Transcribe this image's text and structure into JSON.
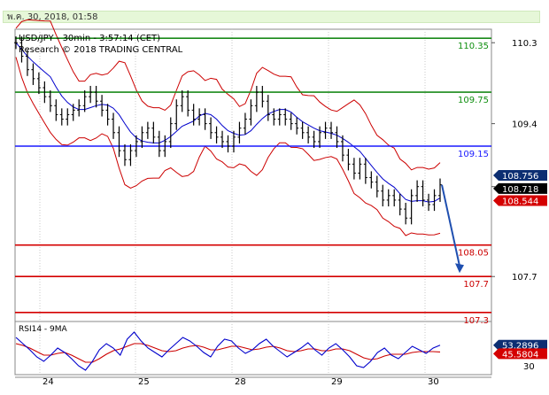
{
  "timestamp": "พ.ค. 30, 2018, 01:58",
  "header": {
    "symbol_line": "USD/JPY - 30min - 3:57:14 (CET)",
    "research_line": "Research © 2018 TRADING CENTRAL"
  },
  "colors": {
    "level_green": "#1a8a1a",
    "level_blue": "#1a1aff",
    "level_red": "#d40000",
    "price_line": "#000000",
    "bollinger": "#cc0000",
    "moving_average": "#0000cc",
    "forecast_arrow": "#1f4fb0",
    "label_green": "#0f8f0f",
    "label_blue": "#1a1aff",
    "label_red": "#cc0000",
    "tag_black": "#000000",
    "tag_red": "#d40000",
    "tag_navy": "#0c2e72"
  },
  "chart_data": [
    {
      "type": "line",
      "title": "USD/JPY - 30min - 3:57:14 (CET)",
      "y_ticks": [
        "110.3",
        "109.4",
        "108.7",
        "107.7"
      ],
      "x_ticks": [
        "24",
        "25",
        "28",
        "29",
        "30"
      ],
      "ylim": [
        107.2,
        110.45
      ],
      "levels": [
        {
          "value": 110.35,
          "label": "110.35",
          "color": "green"
        },
        {
          "value": 109.75,
          "label": "109.75",
          "color": "green"
        },
        {
          "value": 109.15,
          "label": "109.15",
          "color": "blue"
        },
        {
          "value": 108.05,
          "label": "108.05",
          "color": "red"
        },
        {
          "value": 107.7,
          "label": "107.7",
          "color": "red"
        },
        {
          "value": 107.3,
          "label": "107.3",
          "color": "red"
        }
      ],
      "price_tags": [
        {
          "label": "108.756",
          "value": 108.756,
          "style": "navy"
        },
        {
          "label": "108.718",
          "value": 108.718,
          "style": "black"
        },
        {
          "label": "108.544",
          "value": 108.544,
          "style": "red"
        }
      ],
      "price_series": [
        110.3,
        110.15,
        110.0,
        109.9,
        109.8,
        109.7,
        109.6,
        109.5,
        109.45,
        109.5,
        109.55,
        109.6,
        109.7,
        109.75,
        109.65,
        109.55,
        109.45,
        109.3,
        109.1,
        109.0,
        109.1,
        109.2,
        109.3,
        109.35,
        109.25,
        109.1,
        109.2,
        109.4,
        109.6,
        109.7,
        109.55,
        109.45,
        109.5,
        109.4,
        109.3,
        109.25,
        109.2,
        109.15,
        109.25,
        109.35,
        109.45,
        109.6,
        109.75,
        109.65,
        109.5,
        109.45,
        109.5,
        109.45,
        109.4,
        109.35,
        109.3,
        109.25,
        109.2,
        109.3,
        109.35,
        109.3,
        109.2,
        109.05,
        108.95,
        108.85,
        108.95,
        108.8,
        108.75,
        108.65,
        108.55,
        108.6,
        108.55,
        108.45,
        108.35,
        108.6,
        108.7,
        108.55,
        108.5,
        108.6,
        108.72
      ]
    },
    {
      "type": "line",
      "title": "RSI14 - 9MA",
      "y_ticks": [
        "30"
      ],
      "ylim": [
        20,
        80
      ],
      "value_tags": [
        {
          "label": "53.2896",
          "value": 53.2896,
          "style": "navy"
        },
        {
          "label": "45.5804",
          "value": 45.5804,
          "style": "red"
        }
      ],
      "rsi_series": [
        62,
        55,
        48,
        40,
        35,
        42,
        50,
        45,
        38,
        30,
        25,
        35,
        48,
        55,
        50,
        42,
        60,
        68,
        58,
        50,
        45,
        40,
        48,
        55,
        62,
        58,
        52,
        45,
        40,
        52,
        60,
        58,
        50,
        44,
        48,
        55,
        60,
        52,
        46,
        40,
        45,
        50,
        56,
        48,
        42,
        50,
        55,
        48,
        40,
        30,
        28,
        35,
        45,
        50,
        42,
        38,
        45,
        52,
        48,
        44,
        50,
        53.29
      ],
      "ma_series": [
        55,
        53,
        50,
        46,
        42,
        42,
        44,
        45,
        42,
        38,
        34,
        34,
        38,
        43,
        47,
        49,
        52,
        55,
        55,
        53,
        50,
        47,
        46,
        47,
        50,
        52,
        53,
        51,
        48,
        48,
        50,
        52,
        52,
        50,
        48,
        49,
        51,
        52,
        50,
        47,
        46,
        47,
        49,
        49,
        47,
        47,
        49,
        49,
        47,
        43,
        39,
        37,
        38,
        41,
        43,
        43,
        43,
        45,
        46,
        46,
        46,
        45.58
      ]
    }
  ]
}
